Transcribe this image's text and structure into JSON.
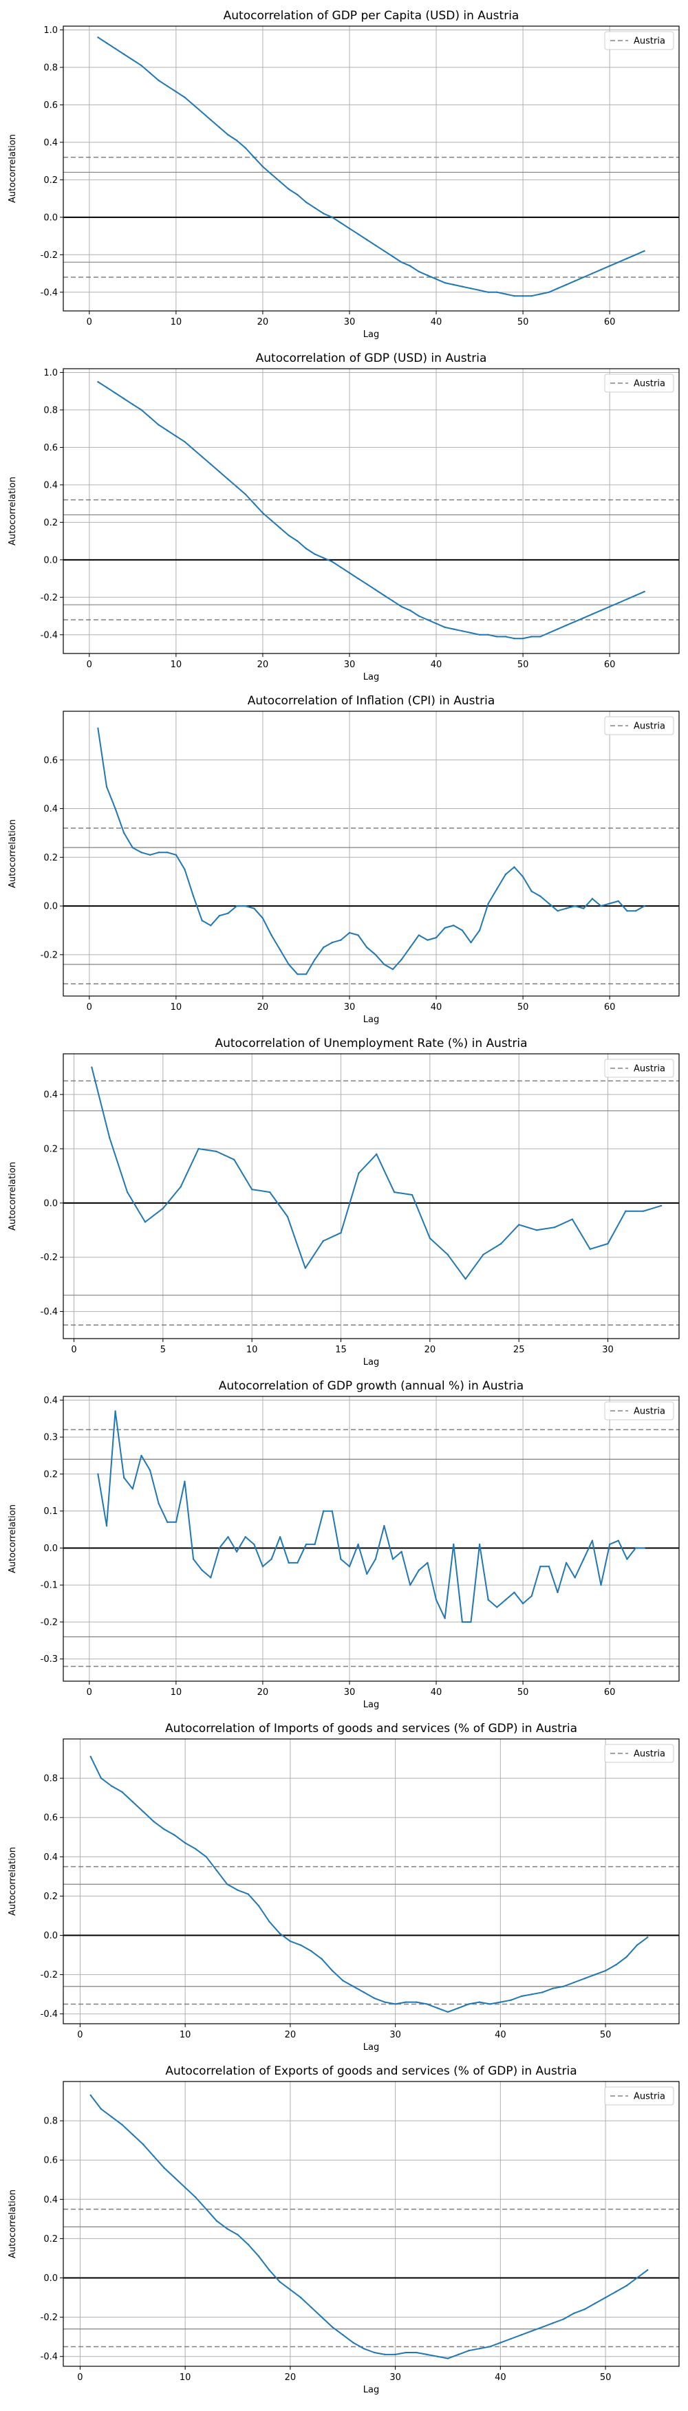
{
  "colors": {
    "line": "#1f77b4",
    "conf_dashed": "#808080",
    "conf_solid": "#808080",
    "zero": "#000000",
    "grid": "#b0b0b0"
  },
  "chart_data": [
    {
      "type": "line",
      "title": "Autocorrelation of GDP per Capita (USD) in Austria",
      "xlabel": "Lag",
      "ylabel": "Autocorrelation",
      "legend": "Austria",
      "legend_position": "top-right",
      "grid": true,
      "xlim": [
        -3,
        68
      ],
      "ylim": [
        -0.5,
        1.02
      ],
      "xticks": [
        0,
        10,
        20,
        30,
        40,
        50,
        60
      ],
      "yticks": [
        -0.4,
        -0.2,
        0.0,
        0.2,
        0.4,
        0.6,
        0.8,
        1.0
      ],
      "conf_dashed": 0.32,
      "conf_solid": 0.24,
      "x": [
        1,
        2,
        3,
        4,
        5,
        6,
        7,
        8,
        9,
        10,
        11,
        12,
        13,
        14,
        15,
        16,
        17,
        18,
        19,
        20,
        21,
        22,
        23,
        24,
        25,
        26,
        27,
        28,
        29,
        30,
        31,
        32,
        33,
        34,
        35,
        36,
        37,
        38,
        39,
        40,
        41,
        42,
        43,
        44,
        45,
        46,
        47,
        48,
        49,
        50,
        51,
        52,
        53,
        54,
        55,
        56,
        57,
        58,
        59,
        60,
        61,
        62,
        63,
        64
      ],
      "y": [
        0.96,
        0.93,
        0.9,
        0.87,
        0.84,
        0.81,
        0.77,
        0.73,
        0.7,
        0.67,
        0.64,
        0.6,
        0.56,
        0.52,
        0.48,
        0.44,
        0.41,
        0.37,
        0.32,
        0.27,
        0.23,
        0.19,
        0.15,
        0.12,
        0.08,
        0.05,
        0.02,
        0.0,
        -0.03,
        -0.06,
        -0.09,
        -0.12,
        -0.15,
        -0.18,
        -0.21,
        -0.24,
        -0.26,
        -0.29,
        -0.31,
        -0.33,
        -0.35,
        -0.36,
        -0.37,
        -0.38,
        -0.39,
        -0.4,
        -0.4,
        -0.41,
        -0.42,
        -0.42,
        -0.42,
        -0.41,
        -0.4,
        -0.38,
        -0.36,
        -0.34,
        -0.32,
        -0.3,
        -0.28,
        -0.26,
        -0.24,
        -0.22,
        -0.2,
        -0.18
      ]
    },
    {
      "type": "line",
      "title": "Autocorrelation of GDP (USD) in Austria",
      "xlabel": "Lag",
      "ylabel": "Autocorrelation",
      "legend": "Austria",
      "legend_position": "top-right",
      "grid": true,
      "xlim": [
        -3,
        68
      ],
      "ylim": [
        -0.5,
        1.02
      ],
      "xticks": [
        0,
        10,
        20,
        30,
        40,
        50,
        60
      ],
      "yticks": [
        -0.4,
        -0.2,
        0.0,
        0.2,
        0.4,
        0.6,
        0.8,
        1.0
      ],
      "conf_dashed": 0.32,
      "conf_solid": 0.24,
      "x": [
        1,
        2,
        3,
        4,
        5,
        6,
        7,
        8,
        9,
        10,
        11,
        12,
        13,
        14,
        15,
        16,
        17,
        18,
        19,
        20,
        21,
        22,
        23,
        24,
        25,
        26,
        27,
        28,
        29,
        30,
        31,
        32,
        33,
        34,
        35,
        36,
        37,
        38,
        39,
        40,
        41,
        42,
        43,
        44,
        45,
        46,
        47,
        48,
        49,
        50,
        51,
        52,
        53,
        54,
        55,
        56,
        57,
        58,
        59,
        60,
        61,
        62,
        63,
        64
      ],
      "y": [
        0.95,
        0.92,
        0.89,
        0.86,
        0.83,
        0.8,
        0.76,
        0.72,
        0.69,
        0.66,
        0.63,
        0.59,
        0.55,
        0.51,
        0.47,
        0.43,
        0.39,
        0.35,
        0.3,
        0.25,
        0.21,
        0.17,
        0.13,
        0.1,
        0.06,
        0.03,
        0.01,
        -0.01,
        -0.04,
        -0.07,
        -0.1,
        -0.13,
        -0.16,
        -0.19,
        -0.22,
        -0.25,
        -0.27,
        -0.3,
        -0.32,
        -0.34,
        -0.36,
        -0.37,
        -0.38,
        -0.39,
        -0.4,
        -0.4,
        -0.41,
        -0.41,
        -0.42,
        -0.42,
        -0.41,
        -0.41,
        -0.39,
        -0.37,
        -0.35,
        -0.33,
        -0.31,
        -0.29,
        -0.27,
        -0.25,
        -0.23,
        -0.21,
        -0.19,
        -0.17
      ]
    },
    {
      "type": "line",
      "title": "Autocorrelation of Inflation (CPI) in Austria",
      "xlabel": "Lag",
      "ylabel": "Autocorrelation",
      "legend": "Austria",
      "legend_position": "top-right",
      "grid": true,
      "xlim": [
        -3,
        68
      ],
      "ylim": [
        -0.37,
        0.8
      ],
      "xticks": [
        0,
        10,
        20,
        30,
        40,
        50,
        60
      ],
      "yticks": [
        -0.2,
        0.0,
        0.2,
        0.4,
        0.6
      ],
      "conf_dashed": 0.32,
      "conf_solid": 0.24,
      "x": [
        1,
        2,
        3,
        4,
        5,
        6,
        7,
        8,
        9,
        10,
        11,
        12,
        13,
        14,
        15,
        16,
        17,
        18,
        19,
        20,
        21,
        22,
        23,
        24,
        25,
        26,
        27,
        28,
        29,
        30,
        31,
        32,
        33,
        34,
        35,
        36,
        37,
        38,
        39,
        40,
        41,
        42,
        43,
        44,
        45,
        46,
        47,
        48,
        49,
        50,
        51,
        52,
        53,
        54,
        55,
        56,
        57,
        58,
        59,
        60,
        61,
        62,
        63,
        64
      ],
      "y": [
        0.73,
        0.49,
        0.4,
        0.3,
        0.24,
        0.22,
        0.21,
        0.22,
        0.22,
        0.21,
        0.15,
        0.04,
        -0.06,
        -0.08,
        -0.04,
        -0.03,
        0.0,
        0.0,
        -0.01,
        -0.05,
        -0.12,
        -0.18,
        -0.24,
        -0.28,
        -0.28,
        -0.22,
        -0.17,
        -0.15,
        -0.14,
        -0.11,
        -0.12,
        -0.17,
        -0.2,
        -0.24,
        -0.26,
        -0.22,
        -0.17,
        -0.12,
        -0.14,
        -0.13,
        -0.09,
        -0.08,
        -0.1,
        -0.15,
        -0.1,
        0.01,
        0.07,
        0.13,
        0.16,
        0.12,
        0.06,
        0.04,
        0.01,
        -0.02,
        -0.01,
        0.0,
        -0.01,
        0.03,
        0.0,
        0.01,
        0.02,
        -0.02,
        -0.02,
        0.0
      ]
    },
    {
      "type": "line",
      "title": "Autocorrelation of Unemployment Rate (%) in Austria",
      "xlabel": "Lag",
      "ylabel": "Autocorrelation",
      "legend": "Austria",
      "legend_position": "top-right",
      "grid": true,
      "xlim": [
        -0.6,
        34
      ],
      "ylim": [
        -0.5,
        0.55
      ],
      "xticks": [
        0,
        5,
        10,
        15,
        20,
        25,
        30
      ],
      "yticks": [
        -0.4,
        -0.2,
        0.0,
        0.2,
        0.4
      ],
      "conf_dashed": 0.45,
      "conf_solid": 0.34,
      "x": [
        1,
        2,
        3,
        4,
        5,
        6,
        7,
        8,
        9,
        10,
        11,
        12,
        13,
        14,
        15,
        16,
        17,
        18,
        19,
        20,
        21,
        22,
        23,
        24,
        25,
        26,
        27,
        28,
        29,
        30,
        31,
        32,
        33
      ],
      "y": [
        0.5,
        0.24,
        0.04,
        -0.07,
        -0.02,
        0.06,
        0.2,
        0.19,
        0.16,
        0.05,
        0.04,
        -0.05,
        -0.24,
        -0.14,
        -0.11,
        0.11,
        0.18,
        0.04,
        0.03,
        -0.13,
        -0.19,
        -0.28,
        -0.19,
        -0.15,
        -0.08,
        -0.1,
        -0.09,
        -0.06,
        -0.17,
        -0.15,
        -0.03,
        -0.03,
        -0.01
      ]
    },
    {
      "type": "line",
      "title": "Autocorrelation of GDP growth (annual %) in Austria",
      "xlabel": "Lag",
      "ylabel": "Autocorrelation",
      "legend": "Austria",
      "legend_position": "top-right",
      "grid": true,
      "xlim": [
        -3,
        68
      ],
      "ylim": [
        -0.36,
        0.41
      ],
      "xticks": [
        0,
        10,
        20,
        30,
        40,
        50,
        60
      ],
      "yticks": [
        -0.3,
        -0.2,
        -0.1,
        0.0,
        0.1,
        0.2,
        0.3,
        0.4
      ],
      "conf_dashed": 0.32,
      "conf_solid": 0.24,
      "x": [
        1,
        2,
        3,
        4,
        5,
        6,
        7,
        8,
        9,
        10,
        11,
        12,
        13,
        14,
        15,
        16,
        17,
        18,
        19,
        20,
        21,
        22,
        23,
        24,
        25,
        26,
        27,
        28,
        29,
        30,
        31,
        32,
        33,
        34,
        35,
        36,
        37,
        38,
        39,
        40,
        41,
        42,
        43,
        44,
        45,
        46,
        47,
        48,
        49,
        50,
        51,
        52,
        53,
        54,
        55,
        56,
        57,
        58,
        59,
        60,
        61,
        62,
        63,
        64
      ],
      "y": [
        0.2,
        0.06,
        0.37,
        0.19,
        0.16,
        0.25,
        0.21,
        0.12,
        0.07,
        0.07,
        0.18,
        -0.03,
        -0.06,
        -0.08,
        0.0,
        0.03,
        -0.01,
        0.03,
        0.01,
        -0.05,
        -0.03,
        0.03,
        -0.04,
        -0.04,
        0.01,
        0.01,
        0.1,
        0.1,
        -0.03,
        -0.05,
        0.01,
        -0.07,
        -0.03,
        0.06,
        -0.03,
        -0.01,
        -0.1,
        -0.06,
        -0.04,
        -0.14,
        -0.19,
        0.01,
        -0.2,
        -0.2,
        0.01,
        -0.14,
        -0.16,
        -0.14,
        -0.12,
        -0.15,
        -0.13,
        -0.05,
        -0.05,
        -0.12,
        -0.04,
        -0.08,
        -0.03,
        0.02,
        -0.1,
        0.01,
        0.02,
        -0.03,
        0.0,
        0.0
      ]
    },
    {
      "type": "line",
      "title": "Autocorrelation of Imports of goods and services (% of GDP) in Austria",
      "xlabel": "Lag",
      "ylabel": "Autocorrelation",
      "legend": "Austria",
      "legend_position": "top-right",
      "grid": true,
      "xlim": [
        -1.6,
        57
      ],
      "ylim": [
        -0.45,
        1.0
      ],
      "xticks": [
        0,
        10,
        20,
        30,
        40,
        50
      ],
      "yticks": [
        -0.4,
        -0.2,
        0.0,
        0.2,
        0.4,
        0.6,
        0.8
      ],
      "conf_dashed": 0.35,
      "conf_solid": 0.26,
      "x": [
        1,
        2,
        3,
        4,
        5,
        6,
        7,
        8,
        9,
        10,
        11,
        12,
        13,
        14,
        15,
        16,
        17,
        18,
        19,
        20,
        21,
        22,
        23,
        24,
        25,
        26,
        27,
        28,
        29,
        30,
        31,
        32,
        33,
        34,
        35,
        36,
        37,
        38,
        39,
        40,
        41,
        42,
        43,
        44,
        45,
        46,
        47,
        48,
        49,
        50,
        51,
        52,
        53,
        54
      ],
      "y": [
        0.91,
        0.8,
        0.76,
        0.73,
        0.68,
        0.63,
        0.58,
        0.54,
        0.51,
        0.47,
        0.44,
        0.4,
        0.33,
        0.26,
        0.23,
        0.21,
        0.15,
        0.07,
        0.01,
        -0.03,
        -0.05,
        -0.08,
        -0.12,
        -0.18,
        -0.23,
        -0.26,
        -0.29,
        -0.32,
        -0.34,
        -0.35,
        -0.34,
        -0.34,
        -0.35,
        -0.37,
        -0.39,
        -0.37,
        -0.35,
        -0.34,
        -0.35,
        -0.34,
        -0.33,
        -0.31,
        -0.3,
        -0.29,
        -0.27,
        -0.26,
        -0.24,
        -0.22,
        -0.2,
        -0.18,
        -0.15,
        -0.11,
        -0.05,
        -0.01
      ]
    },
    {
      "type": "line",
      "title": "Autocorrelation of Exports of goods and services (% of GDP) in Austria",
      "xlabel": "Lag",
      "ylabel": "Autocorrelation",
      "legend": "Austria",
      "legend_position": "top-right",
      "grid": true,
      "xlim": [
        -1.6,
        57
      ],
      "ylim": [
        -0.45,
        1.0
      ],
      "xticks": [
        0,
        10,
        20,
        30,
        40,
        50
      ],
      "yticks": [
        -0.4,
        -0.2,
        0.0,
        0.2,
        0.4,
        0.6,
        0.8
      ],
      "conf_dashed": 0.35,
      "conf_solid": 0.26,
      "x": [
        1,
        2,
        3,
        4,
        5,
        6,
        7,
        8,
        9,
        10,
        11,
        12,
        13,
        14,
        15,
        16,
        17,
        18,
        19,
        20,
        21,
        22,
        23,
        24,
        25,
        26,
        27,
        28,
        29,
        30,
        31,
        32,
        33,
        34,
        35,
        36,
        37,
        38,
        39,
        40,
        41,
        42,
        43,
        44,
        45,
        46,
        47,
        48,
        49,
        50,
        51,
        52,
        53,
        54
      ],
      "y": [
        0.93,
        0.86,
        0.82,
        0.78,
        0.73,
        0.68,
        0.62,
        0.56,
        0.51,
        0.46,
        0.41,
        0.35,
        0.29,
        0.25,
        0.22,
        0.17,
        0.11,
        0.04,
        -0.02,
        -0.06,
        -0.1,
        -0.15,
        -0.2,
        -0.25,
        -0.29,
        -0.33,
        -0.36,
        -0.38,
        -0.39,
        -0.39,
        -0.38,
        -0.38,
        -0.39,
        -0.4,
        -0.41,
        -0.39,
        -0.37,
        -0.36,
        -0.35,
        -0.33,
        -0.31,
        -0.29,
        -0.27,
        -0.25,
        -0.23,
        -0.21,
        -0.18,
        -0.16,
        -0.13,
        -0.1,
        -0.07,
        -0.04,
        0.0,
        0.04
      ]
    }
  ]
}
